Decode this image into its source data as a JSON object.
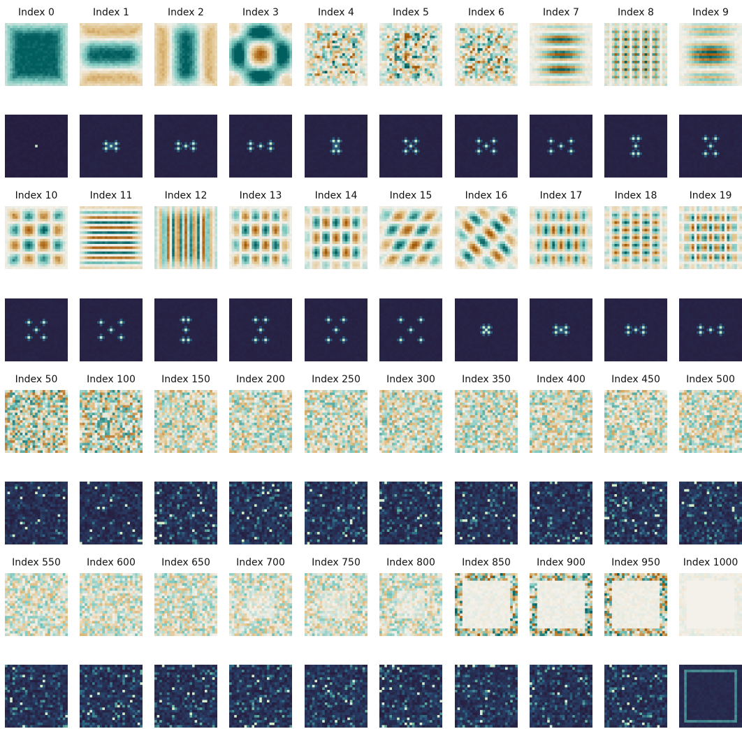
{
  "figure": {
    "colors": {
      "pattern_negative": "#005e5f",
      "pattern_zero": "#f4f1ea",
      "pattern_positive": "#a35707",
      "spectrum_low": "#271d3e",
      "spectrum_mid": "#2f6f87",
      "spectrum_high": "#e9f7d7"
    },
    "colormap_top": "BrBG-like diverging (teal to white to brown)",
    "colormap_bottom": "dark purple to teal to pale yellow (magnitude spectrum)",
    "grid": "off",
    "legend": "none"
  },
  "chart_data": {
    "type": "heatmap",
    "panel_rows": 4,
    "panel_cols": 10,
    "grid_size": 25,
    "description_of_pairs": "each Index shows a spatial pattern (top) and its frequency magnitude (bottom)",
    "indices": [
      "Index 0",
      "Index 1",
      "Index 2",
      "Index 3",
      "Index 4",
      "Index 5",
      "Index 6",
      "Index 7",
      "Index 8",
      "Index 9",
      "Index 10",
      "Index 11",
      "Index 12",
      "Index 13",
      "Index 14",
      "Index 15",
      "Index 16",
      "Index 17",
      "Index 18",
      "Index 19",
      "Index 50",
      "Index 100",
      "Index 150",
      "Index 200",
      "Index 250",
      "Index 300",
      "Index 350",
      "Index 400",
      "Index 450",
      "Index 500",
      "Index 550",
      "Index 600",
      "Index 650",
      "Index 700",
      "Index 750",
      "Index 800",
      "Index 850",
      "Index 900",
      "Index 950",
      "Index 1000"
    ],
    "index_values": [
      0,
      1,
      2,
      3,
      4,
      5,
      6,
      7,
      8,
      9,
      10,
      11,
      12,
      13,
      14,
      15,
      16,
      17,
      18,
      19,
      50,
      100,
      150,
      200,
      250,
      300,
      350,
      400,
      450,
      500,
      550,
      600,
      650,
      700,
      750,
      800,
      850,
      900,
      950,
      1000
    ],
    "pattern_range": [
      -1,
      1
    ],
    "spectrum_range": [
      0,
      1
    ]
  }
}
